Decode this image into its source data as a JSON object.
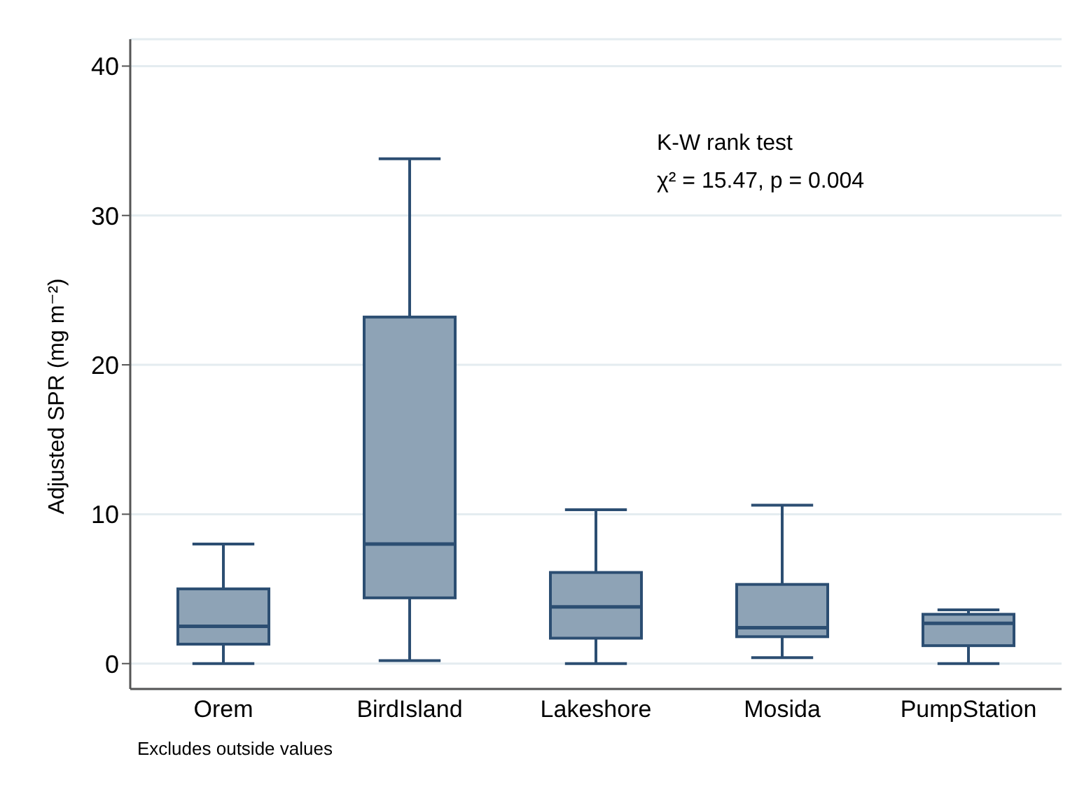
{
  "chart_data": {
    "type": "box",
    "ylabel": "Adjusted SPR (mg m⁻²)",
    "categories": [
      "Orem",
      "BirdIsland",
      "Lakeshore",
      "Mosida",
      "PumpStation"
    ],
    "color": "#8ea3b6",
    "boxes": [
      {
        "low": 0,
        "q1": 1.3,
        "median": 2.5,
        "q3": 5.0,
        "high": 8.0
      },
      {
        "low": 0.2,
        "q1": 4.4,
        "median": 8.0,
        "q3": 23.2,
        "high": 33.8
      },
      {
        "low": 0,
        "q1": 1.7,
        "median": 3.8,
        "q3": 6.1,
        "high": 10.3
      },
      {
        "low": 0.4,
        "q1": 1.8,
        "median": 2.4,
        "q3": 5.3,
        "high": 10.6
      },
      {
        "low": 0,
        "q1": 1.2,
        "median": 2.7,
        "q3": 3.3,
        "high": 3.6
      }
    ],
    "ylim": [
      -1.7,
      41.8
    ],
    "yticks": [
      0,
      10,
      20,
      30,
      40
    ],
    "grid": "y",
    "annotations": [
      "K-W rank test",
      "χ² = 15.47, p = 0.004",
      "Excludes outside values"
    ]
  }
}
